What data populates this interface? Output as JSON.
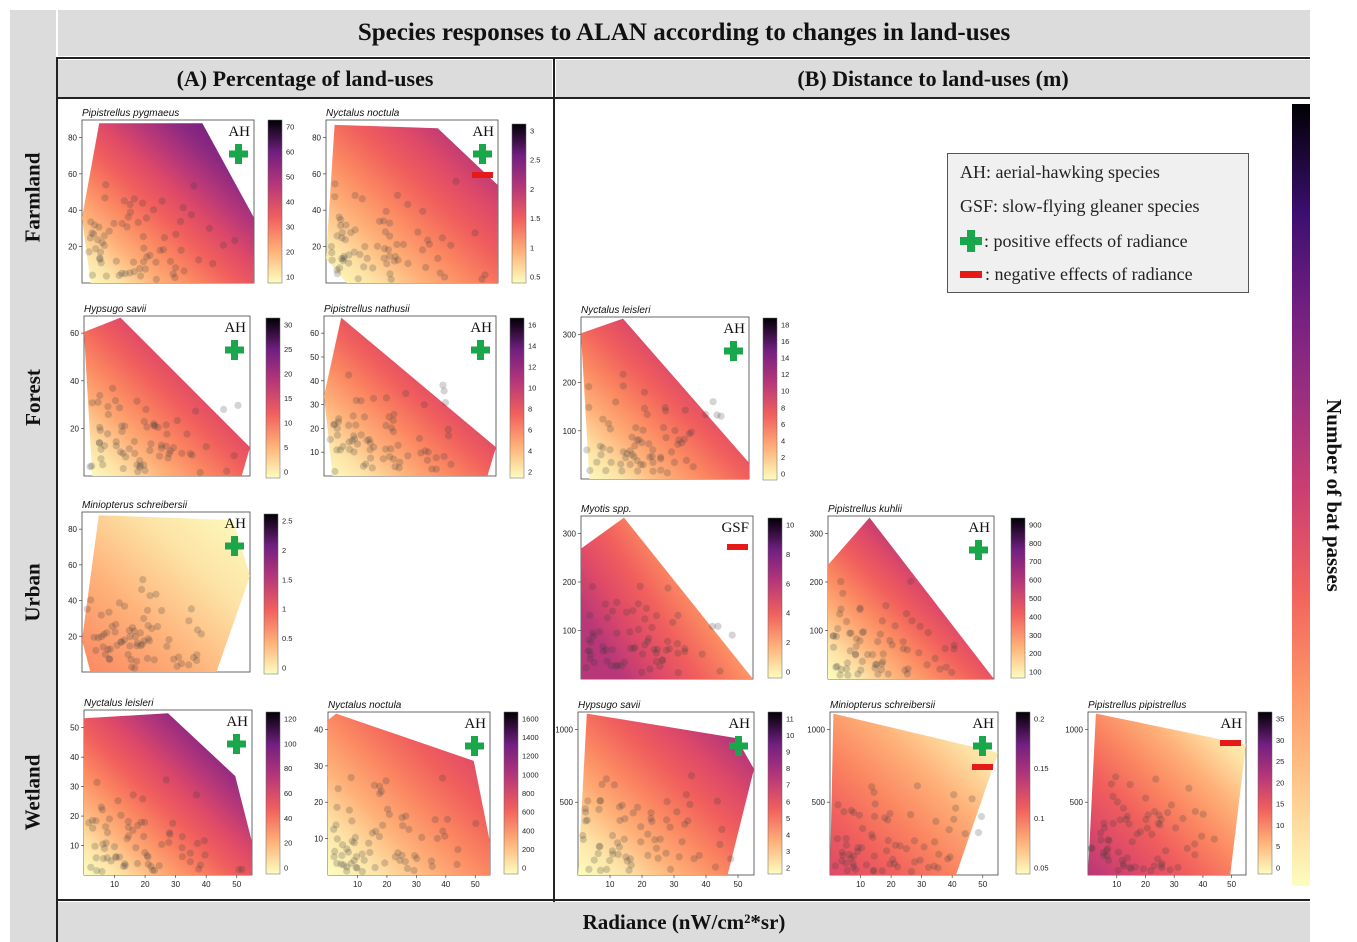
{
  "title": "Species responses to ALAN according to changes in land-uses",
  "col_a": "(A) Percentage of land-uses",
  "col_b": "(B) Distance to land-uses (m)",
  "rows": {
    "farmland": "Farmland",
    "forest": "Forest",
    "urban": "Urban",
    "wetland": "Wetland"
  },
  "xlabel": "Radiance (nW/cm²*sr)",
  "scale_label": "Number of bat passes",
  "legend": {
    "ah": "AH: aerial-hawking species",
    "gsf": "GSF: slow-flying gleaner species",
    "pos": ": positive effects of radiance",
    "neg": ": negative effects of radiance"
  },
  "colors": {
    "positive": "#1aa64a",
    "negative": "#e61919",
    "band": "#dcdcdc"
  },
  "chart_data": [
    {
      "type": "heatmap",
      "panel": "A",
      "land_use": "Farmland",
      "species": "Pipistrellus pygmaeus",
      "guild": "AH",
      "effects": [
        "positive"
      ],
      "y_ticks": [
        20,
        40,
        60,
        80
      ],
      "x_ticks": [],
      "colorbar_ticks": [
        10,
        20,
        30,
        40,
        50,
        60,
        70
      ]
    },
    {
      "type": "heatmap",
      "panel": "A",
      "land_use": "Farmland",
      "species": "Nyctalus noctula",
      "guild": "AH",
      "effects": [
        "positive",
        "negative"
      ],
      "y_ticks": [
        20,
        40,
        60,
        80
      ],
      "x_ticks": [],
      "colorbar_ticks": [
        0.5,
        1.0,
        1.5,
        2.0,
        2.5,
        3.0
      ]
    },
    {
      "type": "heatmap",
      "panel": "A",
      "land_use": "Forest",
      "species": "Hypsugo savii",
      "guild": "AH",
      "effects": [
        "positive"
      ],
      "y_ticks": [
        20,
        40,
        60
      ],
      "x_ticks": [],
      "colorbar_ticks": [
        0,
        5,
        10,
        15,
        20,
        25,
        30
      ]
    },
    {
      "type": "heatmap",
      "panel": "A",
      "land_use": "Forest",
      "species": "Pipistrellus nathusii",
      "guild": "AH",
      "effects": [
        "positive"
      ],
      "y_ticks": [
        10,
        20,
        30,
        40,
        50,
        60
      ],
      "x_ticks": [],
      "colorbar_ticks": [
        2,
        4,
        6,
        8,
        10,
        12,
        14,
        16
      ]
    },
    {
      "type": "heatmap",
      "panel": "B",
      "land_use": "Forest",
      "species": "Nyctalus leisleri",
      "guild": "AH",
      "effects": [
        "positive"
      ],
      "y_ticks": [
        100,
        200,
        300
      ],
      "x_ticks": [],
      "colorbar_ticks": [
        0,
        2,
        4,
        6,
        8,
        10,
        12,
        14,
        16,
        18
      ]
    },
    {
      "type": "heatmap",
      "panel": "A",
      "land_use": "Urban",
      "species": "Miniopterus schreibersii",
      "guild": "AH",
      "effects": [
        "positive"
      ],
      "y_ticks": [
        20,
        40,
        60,
        80
      ],
      "x_ticks": [],
      "colorbar_ticks": [
        0.0,
        0.5,
        1.0,
        1.5,
        2.0,
        2.5
      ]
    },
    {
      "type": "heatmap",
      "panel": "B",
      "land_use": "Urban",
      "species": "Myotis spp.",
      "guild": "GSF",
      "effects": [
        "negative"
      ],
      "y_ticks": [
        100,
        200,
        300
      ],
      "x_ticks": [],
      "colorbar_ticks": [
        0,
        2,
        4,
        6,
        8,
        10
      ]
    },
    {
      "type": "heatmap",
      "panel": "B",
      "land_use": "Urban",
      "species": "Pipistrellus kuhlii",
      "guild": "AH",
      "effects": [
        "positive"
      ],
      "y_ticks": [
        100,
        200,
        300
      ],
      "x_ticks": [],
      "colorbar_ticks": [
        100,
        200,
        300,
        400,
        500,
        600,
        700,
        800,
        900
      ]
    },
    {
      "type": "heatmap",
      "panel": "A",
      "land_use": "Wetland",
      "species": "Nyctalus leisleri",
      "guild": "AH",
      "effects": [
        "positive"
      ],
      "y_ticks": [
        10,
        20,
        30,
        40,
        50
      ],
      "x_ticks": [
        10,
        20,
        30,
        40,
        50
      ],
      "colorbar_ticks": [
        0,
        20,
        40,
        60,
        80,
        100,
        120
      ]
    },
    {
      "type": "heatmap",
      "panel": "A",
      "land_use": "Wetland",
      "species": "Nyctalus noctula",
      "guild": "AH",
      "effects": [
        "positive"
      ],
      "y_ticks": [
        10,
        20,
        30,
        40
      ],
      "x_ticks": [
        10,
        20,
        30,
        40,
        50
      ],
      "colorbar_ticks": [
        0,
        200,
        400,
        600,
        800,
        1000,
        1200,
        1400,
        1600
      ]
    },
    {
      "type": "heatmap",
      "panel": "B",
      "land_use": "Wetland",
      "species": "Hypsugo savii",
      "guild": "AH",
      "effects": [
        "positive"
      ],
      "y_ticks": [
        500,
        1000
      ],
      "x_ticks": [
        10,
        20,
        30,
        40,
        50
      ],
      "colorbar_ticks": [
        2,
        3,
        4,
        5,
        6,
        7,
        8,
        9,
        10,
        11
      ]
    },
    {
      "type": "heatmap",
      "panel": "B",
      "land_use": "Wetland",
      "species": "Miniopterus schreibersii",
      "guild": "AH",
      "effects": [
        "positive",
        "negative"
      ],
      "y_ticks": [
        500,
        1000
      ],
      "x_ticks": [
        10,
        20,
        30,
        40,
        50
      ],
      "colorbar_ticks": [
        0.05,
        0.1,
        0.15,
        0.2
      ]
    },
    {
      "type": "heatmap",
      "panel": "B",
      "land_use": "Wetland",
      "species": "Pipistrellus pipistrellus",
      "guild": "AH",
      "effects": [
        "negative"
      ],
      "y_ticks": [
        500,
        1000
      ],
      "x_ticks": [
        10,
        20,
        30,
        40,
        50
      ],
      "colorbar_ticks": [
        0,
        5,
        10,
        15,
        20,
        25,
        30,
        35
      ]
    }
  ]
}
